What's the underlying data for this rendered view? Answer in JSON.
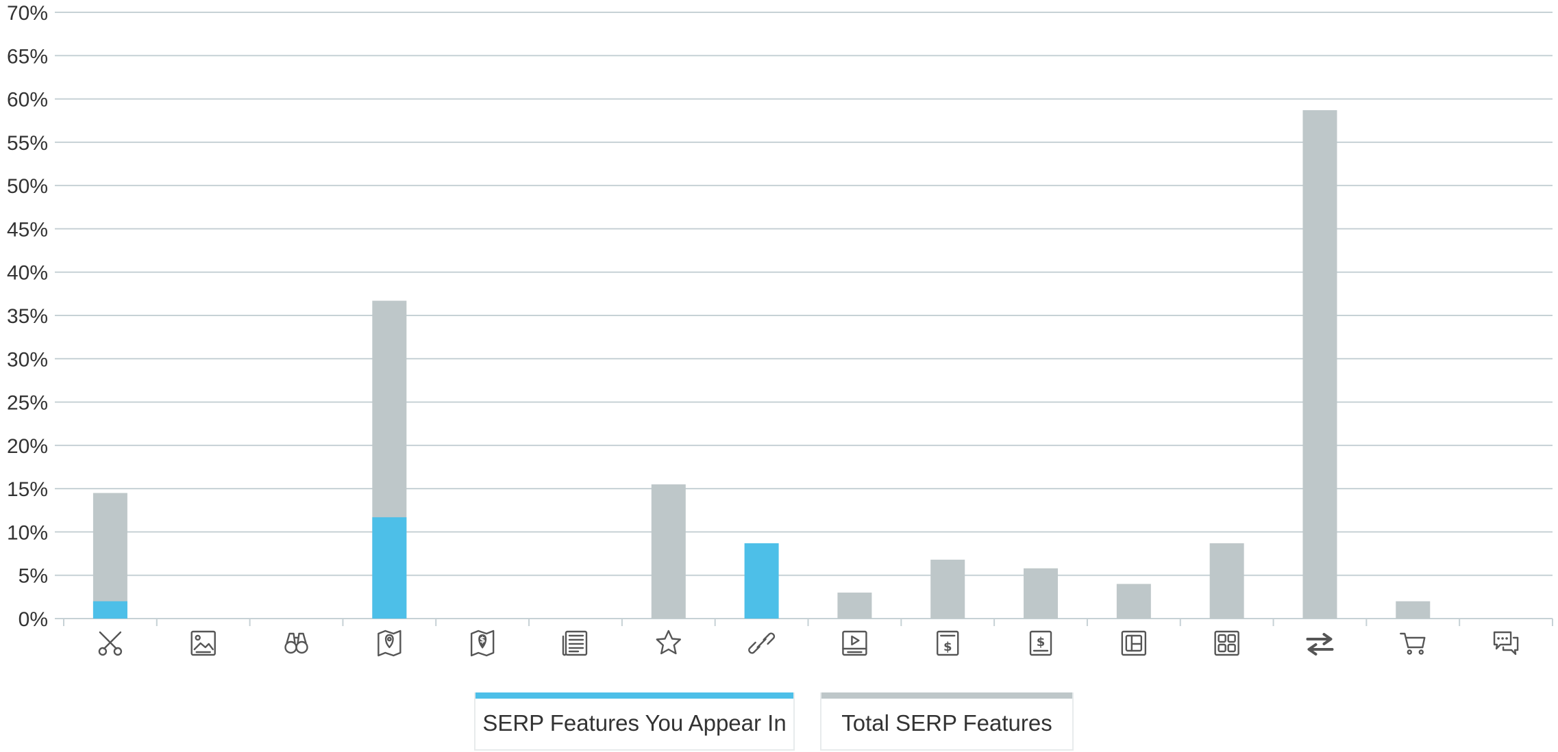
{
  "colors": {
    "appear": "#4dbfe8",
    "total": "#bec7c9",
    "grid": "#c6d1d5",
    "axis_text": "#333333",
    "icon": "#555555"
  },
  "legend": {
    "appear_label": "SERP Features You Appear In",
    "total_label": "Total SERP Features"
  },
  "chart_data": {
    "type": "bar",
    "stacked_overlay": true,
    "ylim": [
      0,
      70
    ],
    "y_ticks": [
      "0%",
      "5%",
      "10%",
      "15%",
      "20%",
      "25%",
      "30%",
      "35%",
      "40%",
      "45%",
      "50%",
      "55%",
      "60%",
      "65%",
      "70%"
    ],
    "grid": true,
    "legend_position": "bottom-center",
    "categories": [
      "scissors-icon",
      "image-icon",
      "binoculars-icon",
      "map-pin-icon",
      "map-dollar-icon",
      "newspaper-icon",
      "star-icon",
      "link-icon",
      "video-icon",
      "ad-top-icon",
      "ad-bottom-icon",
      "panel-icon",
      "grid-icon",
      "exchange-icon",
      "cart-icon",
      "chat-icon"
    ],
    "series": [
      {
        "name": "Total SERP Features",
        "color": "#bec7c9",
        "values": [
          14.5,
          0,
          0,
          36.7,
          0,
          0,
          15.5,
          0,
          3,
          6.8,
          5.8,
          4,
          8.7,
          58.7,
          2,
          0
        ]
      },
      {
        "name": "SERP Features You Appear In",
        "color": "#4dbfe8",
        "values": [
          2,
          0,
          0,
          11.7,
          0,
          0,
          0,
          8.7,
          0,
          0,
          0,
          0,
          0,
          0,
          0,
          0
        ]
      }
    ]
  }
}
